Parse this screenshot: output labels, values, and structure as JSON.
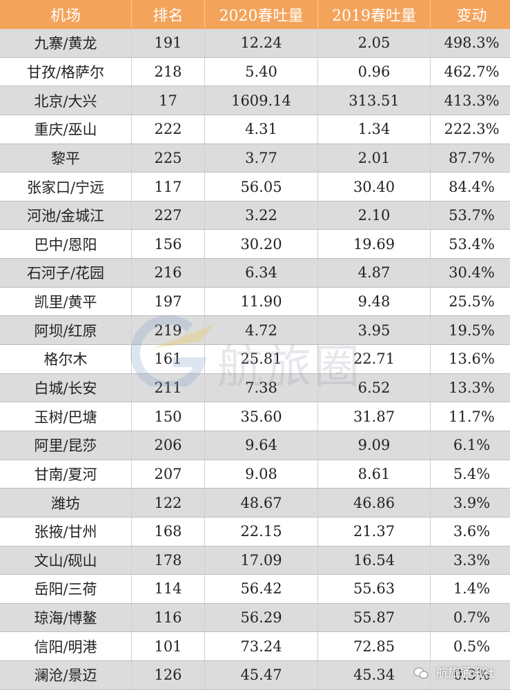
{
  "table": {
    "header": [
      "机场",
      "排名",
      "2020春吐量",
      "2019春吐量",
      "变动"
    ],
    "rows": [
      [
        "九寨/黄龙",
        "191",
        "12.24",
        "2.05",
        "498.3%"
      ],
      [
        "甘孜/格萨尔",
        "218",
        "5.40",
        "0.96",
        "462.7%"
      ],
      [
        "北京/大兴",
        "17",
        "1609.14",
        "313.51",
        "413.3%"
      ],
      [
        "重庆/巫山",
        "222",
        "4.31",
        "1.34",
        "222.3%"
      ],
      [
        "黎平",
        "225",
        "3.77",
        "2.01",
        "87.7%"
      ],
      [
        "张家口/宁远",
        "117",
        "56.05",
        "30.40",
        "84.4%"
      ],
      [
        "河池/金城江",
        "227",
        "3.22",
        "2.10",
        "53.7%"
      ],
      [
        "巴中/恩阳",
        "156",
        "30.20",
        "19.69",
        "53.4%"
      ],
      [
        "石河子/花园",
        "216",
        "6.34",
        "4.87",
        "30.4%"
      ],
      [
        "凯里/黄平",
        "197",
        "11.90",
        "9.48",
        "25.5%"
      ],
      [
        "阿坝/红原",
        "219",
        "4.72",
        "3.95",
        "19.5%"
      ],
      [
        "格尔木",
        "161",
        "25.81",
        "22.71",
        "13.6%"
      ],
      [
        "白城/长安",
        "211",
        "7.38",
        "6.52",
        "13.3%"
      ],
      [
        "玉树/巴塘",
        "150",
        "35.60",
        "31.87",
        "11.7%"
      ],
      [
        "阿里/昆莎",
        "206",
        "9.64",
        "9.09",
        "6.1%"
      ],
      [
        "甘南/夏河",
        "207",
        "9.08",
        "8.61",
        "5.4%"
      ],
      [
        "潍坊",
        "122",
        "48.67",
        "46.86",
        "3.9%"
      ],
      [
        "张掖/甘州",
        "168",
        "22.15",
        "21.37",
        "3.6%"
      ],
      [
        "文山/砚山",
        "178",
        "17.09",
        "16.54",
        "3.3%"
      ],
      [
        "岳阳/三荷",
        "114",
        "56.42",
        "55.63",
        "1.4%"
      ],
      [
        "琼海/博鳌",
        "116",
        "56.29",
        "55.87",
        "0.7%"
      ],
      [
        "信阳/明港",
        "101",
        "73.24",
        "72.85",
        "0.5%"
      ],
      [
        "澜沧/景迈",
        "126",
        "45.47",
        "45.34",
        "0.3%"
      ]
    ]
  },
  "watermark": "航旅圈",
  "brand": "航旅通讯社"
}
